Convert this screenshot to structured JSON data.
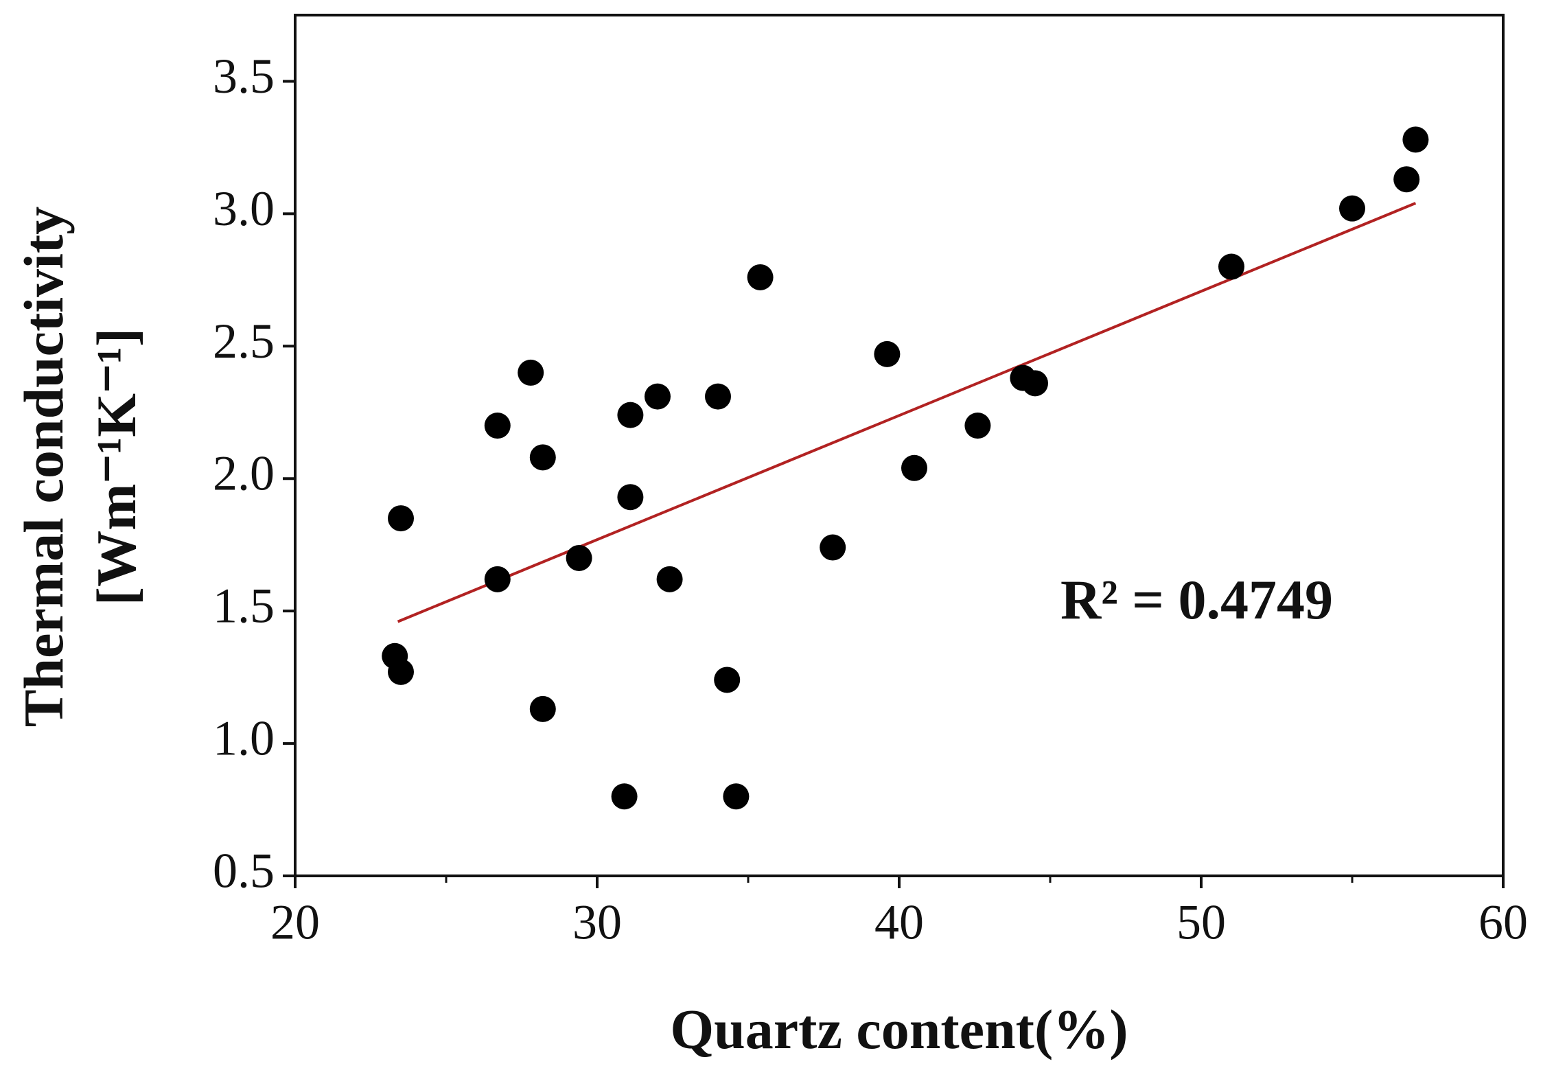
{
  "chart_data": {
    "type": "scatter",
    "x_label": "Quartz content(%)",
    "y_label": [
      "Thermal conductivity",
      "[Wm⁻¹K⁻¹]"
    ],
    "annotation": "R² = 0.4749",
    "x": [
      23.5,
      23.3,
      23.5,
      26.7,
      26.7,
      27.8,
      28.2,
      28.2,
      29.4,
      30.9,
      31.1,
      31.1,
      32.0,
      32.4,
      34.0,
      34.3,
      34.6,
      35.4,
      37.8,
      39.6,
      40.5,
      42.6,
      44.1,
      44.5,
      51.0,
      55.0,
      56.8,
      57.1
    ],
    "values": [
      1.85,
      1.33,
      1.27,
      1.62,
      2.2,
      2.4,
      2.08,
      1.13,
      1.7,
      0.8,
      1.93,
      2.24,
      2.31,
      1.62,
      2.31,
      1.24,
      0.8,
      2.76,
      1.74,
      2.47,
      2.04,
      2.2,
      2.38,
      2.36,
      2.8,
      3.02,
      3.13,
      3.28
    ],
    "color": "#000000",
    "trendline": {
      "x": [
        23.4,
        57.1
      ],
      "y": [
        1.46,
        3.04
      ],
      "color": "#b22222"
    },
    "xlim": [
      20,
      60
    ],
    "xticks": [
      20,
      30,
      40,
      50,
      60
    ],
    "xminorticks": [
      25,
      35,
      45,
      55
    ],
    "ylim": [
      0.5,
      3.75
    ],
    "yticks": [
      0.5,
      {
        "value": 1.0,
        "label": "1.0"
      },
      1.5,
      {
        "value": 2.0,
        "label": "2.0"
      },
      2.5,
      {
        "value": 3.0,
        "label": "3.0"
      },
      3.5
    ]
  }
}
